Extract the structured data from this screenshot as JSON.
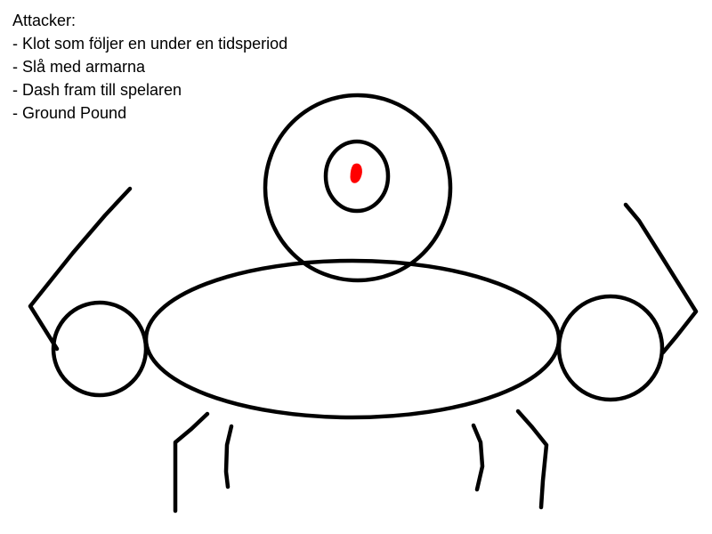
{
  "notes": {
    "heading": "Attacker:",
    "items": [
      "- Klot som följer en under en tidsperiod",
      "- Slå med armarna",
      "- Dash fram till spelaren",
      "- Ground Pound"
    ]
  },
  "colors": {
    "ink": "#000000",
    "eye_pupil": "#ff0000",
    "background": "#ffffff"
  }
}
